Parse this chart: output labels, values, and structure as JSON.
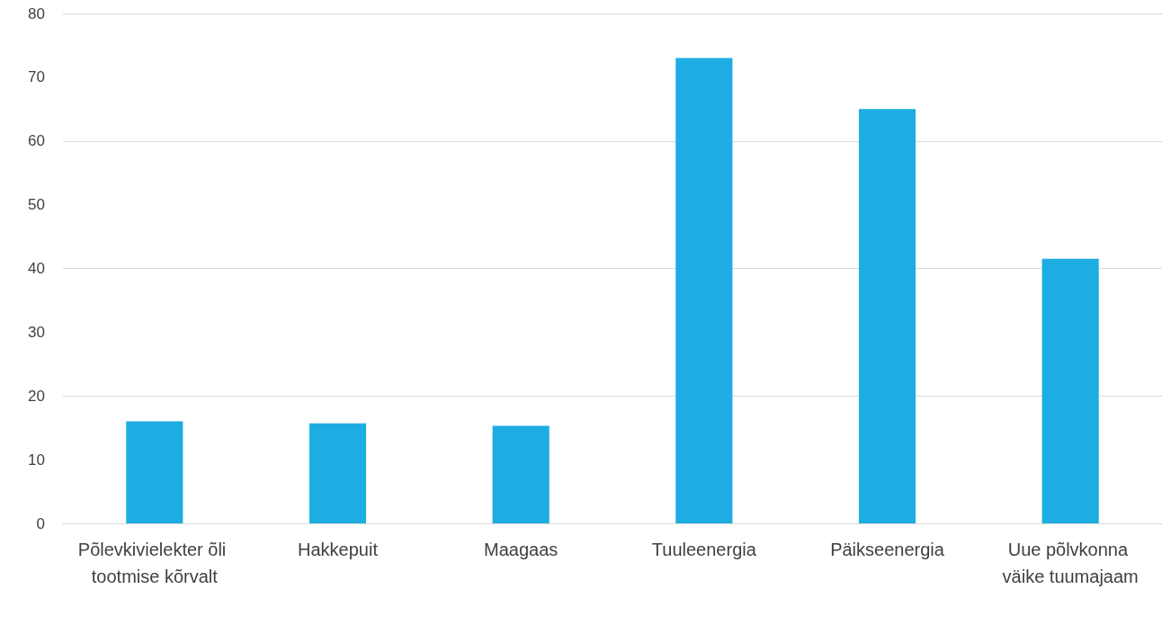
{
  "chart_data": {
    "type": "bar",
    "categories": [
      "Põlevkivielekter õli tootmise kõrvalt",
      "Hakkepuit",
      "Maagaas",
      "Tuuleenergia",
      "Päikseenergia",
      "Uue põlvkonna väike tuumajaam"
    ],
    "values": [
      16,
      15.7,
      15.3,
      73,
      65,
      41.5
    ],
    "color": "#1eade3",
    "ylim": [
      0,
      80
    ],
    "yticks": [
      0,
      10,
      20,
      30,
      40,
      50,
      60,
      70,
      80
    ],
    "grid": "y"
  }
}
